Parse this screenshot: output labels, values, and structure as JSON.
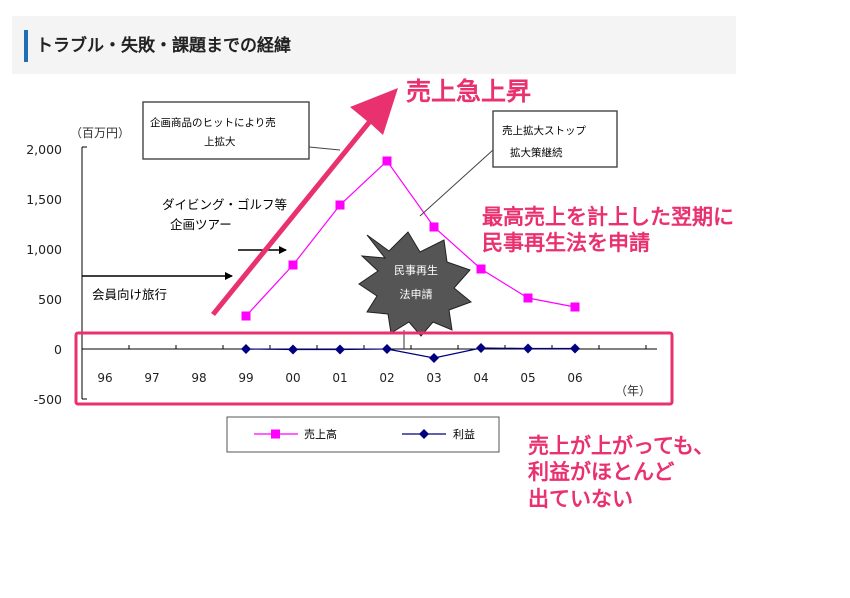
{
  "header": {
    "title": "トラブル・失敗・課題までの経緯"
  },
  "chart_data": {
    "type": "line",
    "unit_label": "（百万円）",
    "xlabel": "（年）",
    "categories": [
      "96",
      "97",
      "98",
      "99",
      "00",
      "01",
      "02",
      "03",
      "04",
      "05",
      "06"
    ],
    "yticks": [
      "2,000",
      "1,500",
      "1,000",
      "500",
      "0",
      "-500"
    ],
    "ylim": [
      -500,
      2000
    ],
    "series": [
      {
        "name": "売上高",
        "color": "#ff00ff",
        "marker": "square",
        "values": [
          null,
          null,
          null,
          330,
          840,
          1440,
          1880,
          1220,
          800,
          510,
          420
        ]
      },
      {
        "name": "利益",
        "color": "#000080",
        "marker": "diamond",
        "values": [
          null,
          null,
          null,
          0,
          -5,
          -5,
          0,
          -90,
          10,
          5,
          5
        ]
      }
    ],
    "legend_position": "bottom-center"
  },
  "callouts": {
    "hit": "企画商品のヒットにより売上拡大",
    "stop": "売上拡大ストップ拡大策継続",
    "diving": "ダイビング・ゴルフ等企画ツアー",
    "member": "会員向け旅行",
    "burst": "民事再生法申請"
  },
  "annotations": {
    "surge": "売上急上昇",
    "filed": "最高売上を計上した翌期に民事再生法を申請",
    "noprofit": "売上が上がっても、利益がほとんど出ていない"
  },
  "colors": {
    "highlight": "#ea3170",
    "accent": "#1f6fb7"
  }
}
